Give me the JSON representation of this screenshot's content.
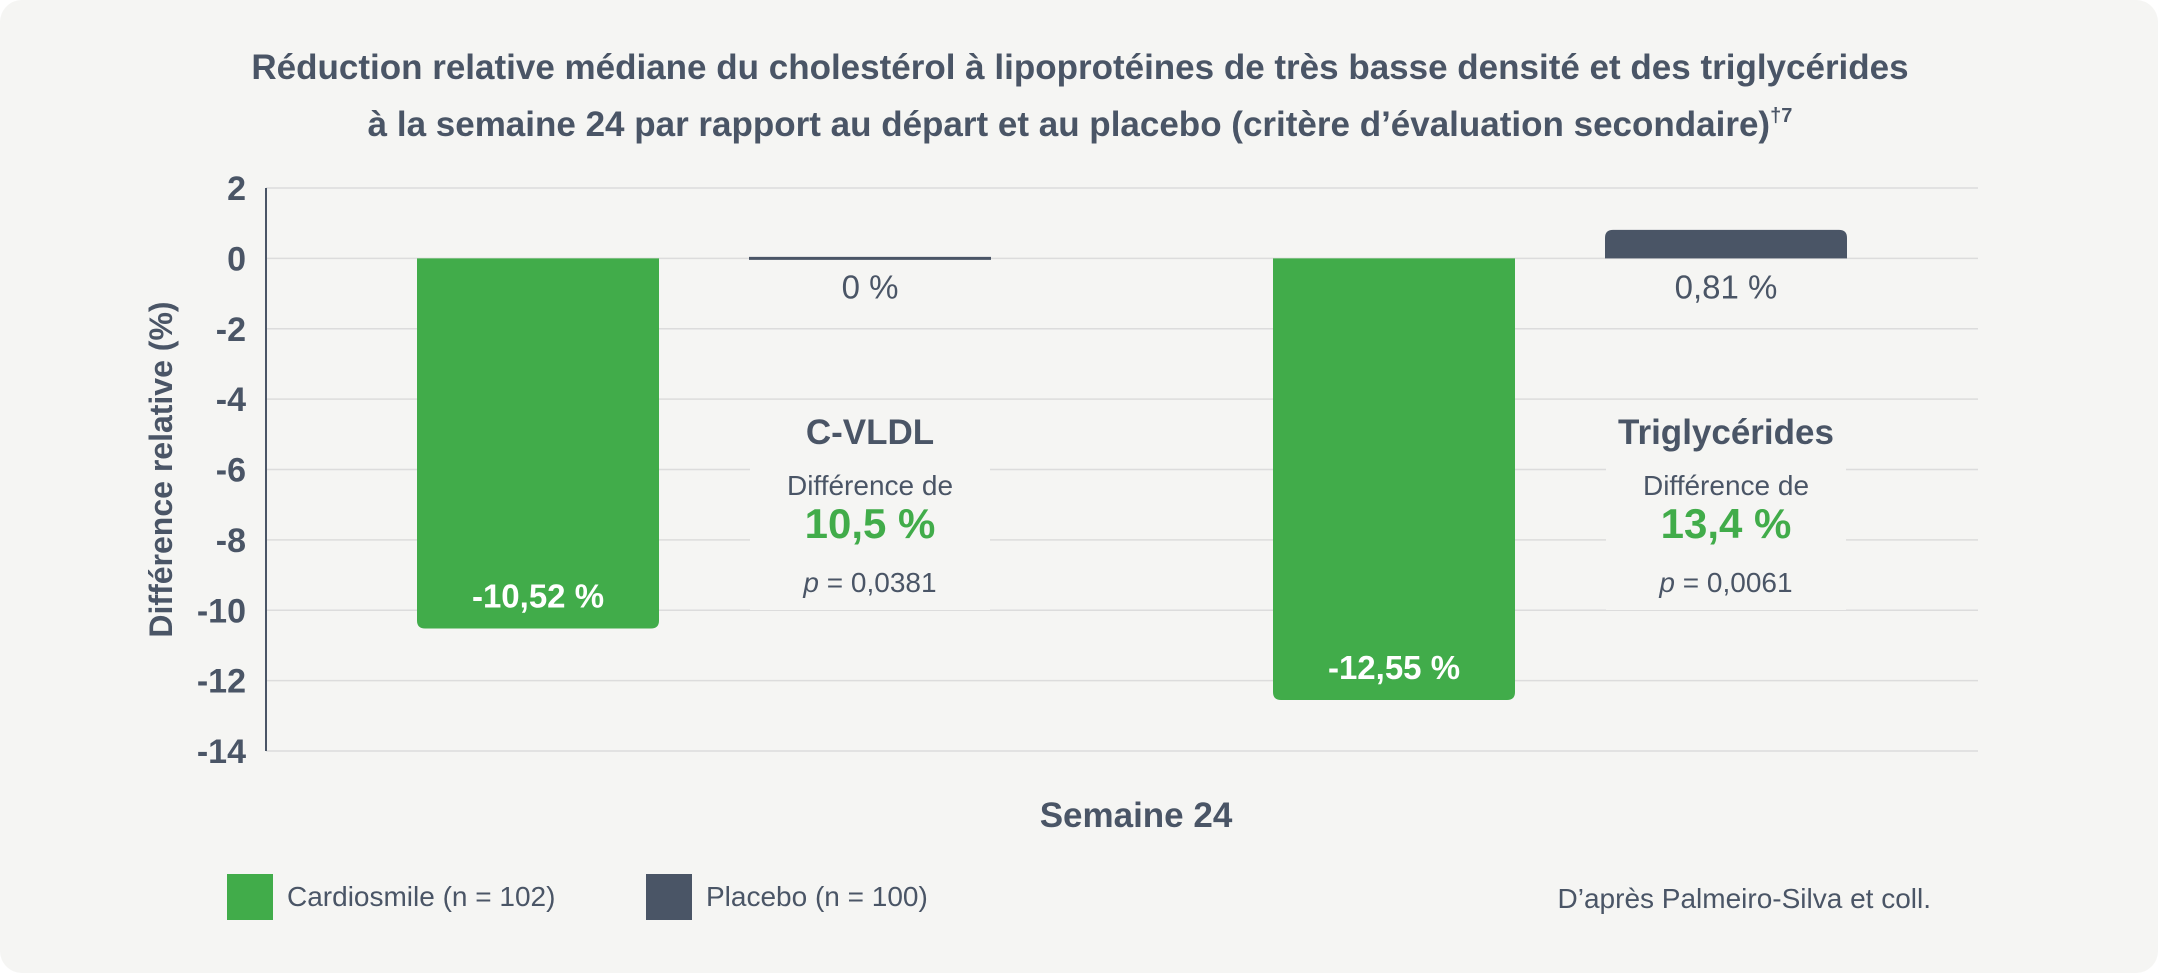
{
  "chart_data": {
    "type": "bar",
    "title": {
      "line1": "Réduction relative médiane du cholestérol à lipoprotéines de très basse densité et des triglycérides",
      "line2": "à la semaine 24 par rapport au départ et au placebo (critère d’évaluation secondaire)",
      "superscript": "†7"
    },
    "xlabel": "Semaine 24",
    "ylabel": "Différence relative (%)",
    "ylim": [
      -14,
      2
    ],
    "yticks": [
      2,
      0,
      -2,
      -4,
      -6,
      -8,
      -10,
      -12,
      -14
    ],
    "grid": true,
    "categories": [
      "C-VLDL",
      "Triglycérides"
    ],
    "series": [
      {
        "name": "Cardiosmile (n = 102)",
        "color": "#41ac4a",
        "values": [
          -10.52,
          -12.55
        ],
        "labels": [
          "-10,52 %",
          "-12,55 %"
        ]
      },
      {
        "name": "Placebo (n = 100)",
        "color": "#4a5566",
        "values": [
          0,
          0.81
        ],
        "labels": [
          "0 %",
          "0,81 %"
        ]
      }
    ],
    "annotations": [
      {
        "heading": "C-VLDL",
        "diff_label": "Différence de",
        "diff_value": "10,5 %",
        "p_symbol": "p",
        "p_text": " = 0,0381"
      },
      {
        "heading": "Triglycérides",
        "diff_label": "Différence de",
        "diff_value": "13,4 %",
        "p_symbol": "p",
        "p_text": " = 0,0061"
      }
    ],
    "legend_position": "bottom-left"
  },
  "legend": [
    {
      "label": "Cardiosmile (n = 102)",
      "color": "#41ac4a"
    },
    {
      "label": "Placebo (n = 100)",
      "color": "#4a5566"
    }
  ],
  "source": "D’après Palmeiro-Silva et coll.",
  "colors": {
    "accent_green": "#41ac4a",
    "dark_slate": "#4a5566",
    "grid": "#dcdcdc",
    "background": "#f5f5f3"
  }
}
